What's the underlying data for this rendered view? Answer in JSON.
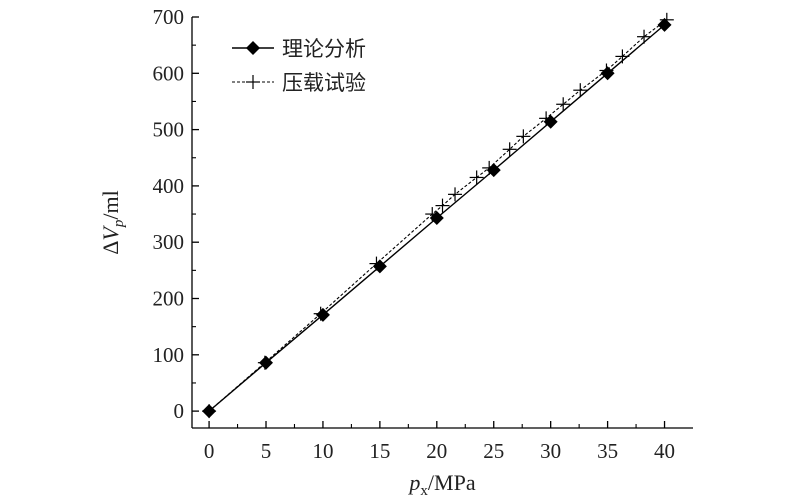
{
  "chart_data": {
    "type": "line",
    "xlabel": {
      "main": "p",
      "sub": "x",
      "unit": "/MPa"
    },
    "ylabel": {
      "delta": "Δ",
      "main": "V",
      "sub": "p",
      "unit": "/ml"
    },
    "xlim": [
      -1.5,
      42.5
    ],
    "ylim": [
      -30,
      700
    ],
    "xticks": [
      0,
      5,
      10,
      15,
      20,
      25,
      30,
      35,
      40
    ],
    "yticks": [
      0,
      100,
      200,
      300,
      400,
      500,
      600,
      700
    ],
    "grid": false,
    "legend_position": "top-left",
    "series": [
      {
        "name": "理论分析",
        "line_style": "solid",
        "marker": "diamond",
        "color": "#000000",
        "x": [
          0,
          5,
          10,
          15,
          20,
          25,
          30,
          35,
          40
        ],
        "y": [
          0,
          86,
          171,
          257,
          343,
          428,
          514,
          600,
          686
        ]
      },
      {
        "name": "压载试验",
        "line_style": "dashed",
        "marker": "plus",
        "color": "#000000",
        "x": [
          0,
          4.9,
          9.8,
          14.7,
          19.6,
          20.5,
          21.6,
          23.5,
          24.6,
          26.4,
          27.6,
          29.6,
          31.1,
          32.6,
          34.9,
          36.3,
          38.2,
          40.2
        ],
        "y": [
          0,
          86,
          173,
          262,
          350,
          365,
          385,
          415,
          432,
          465,
          488,
          520,
          545,
          570,
          605,
          630,
          665,
          695
        ]
      }
    ]
  }
}
